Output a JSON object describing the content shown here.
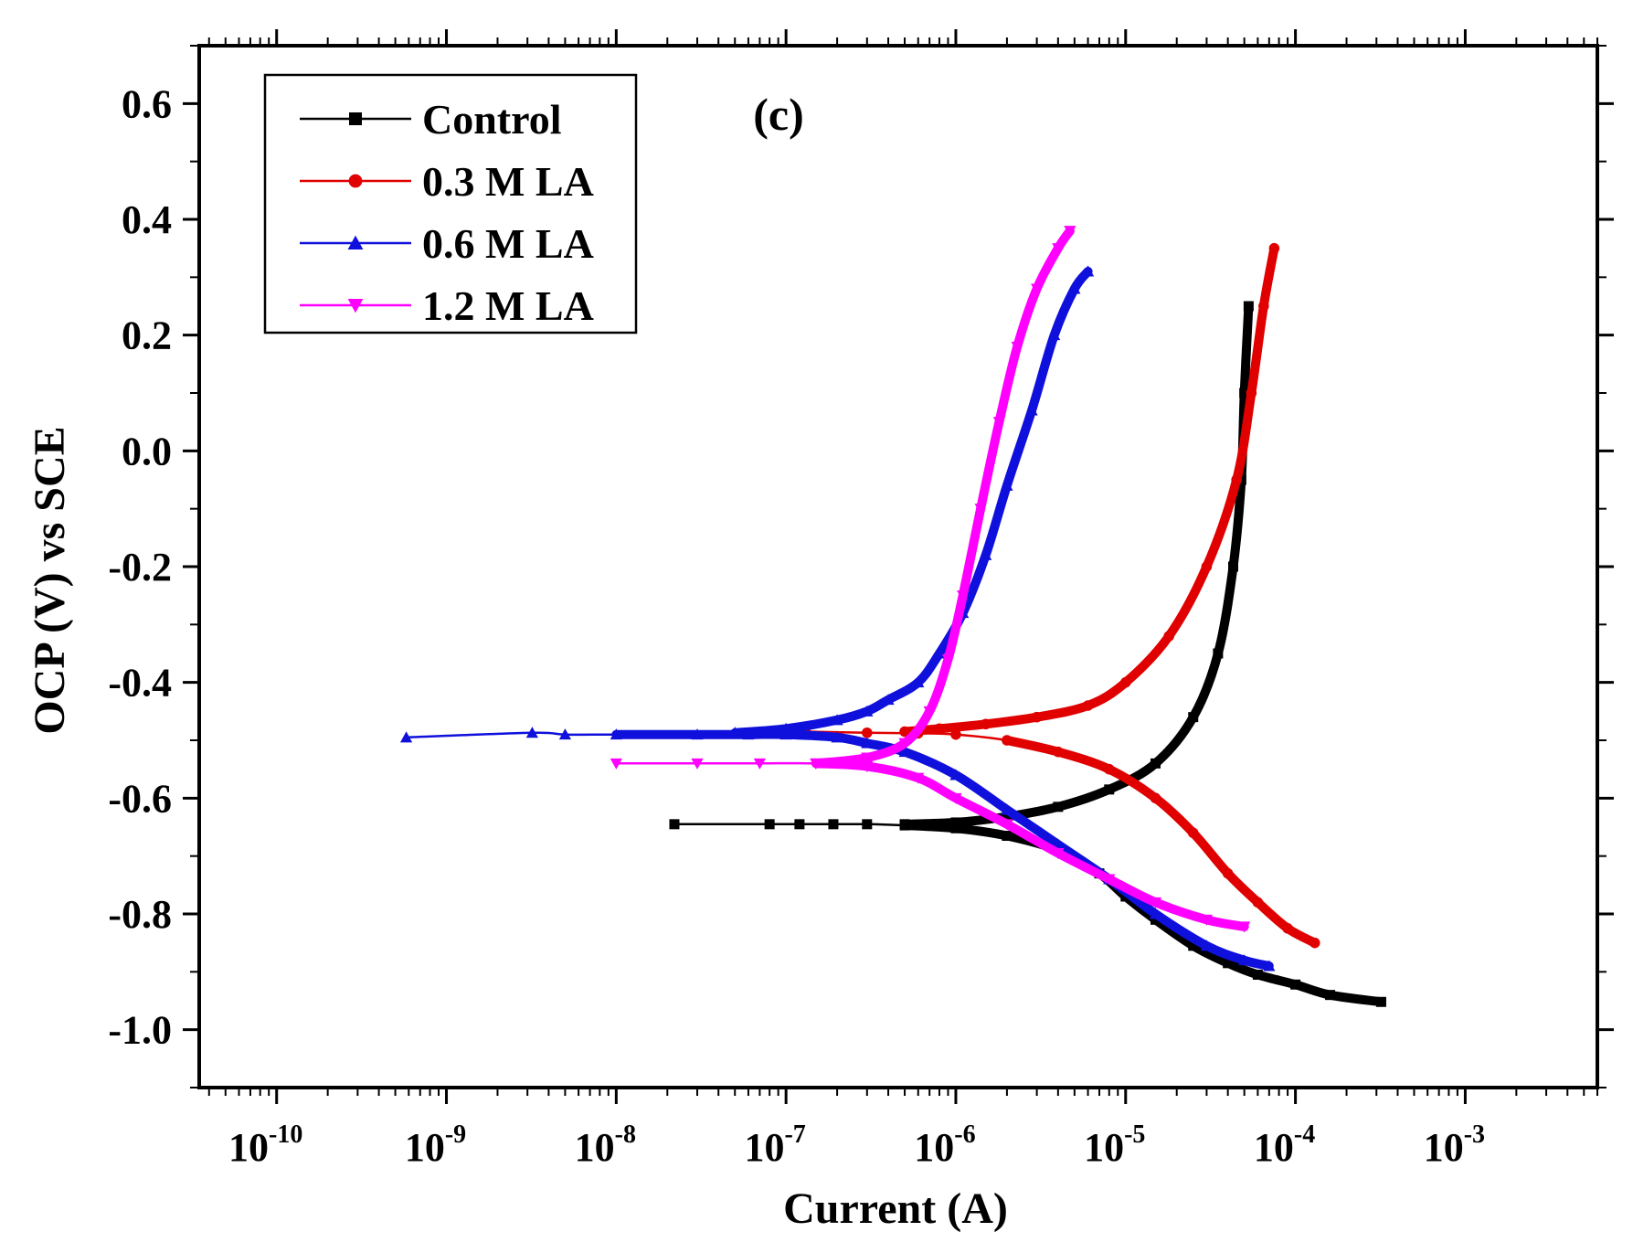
{
  "chart_data": {
    "type": "line",
    "panel_label": "(c)",
    "xlabel": "Current (A)",
    "ylabel": "OCP (V) vs SCE",
    "x_scale": "log",
    "xlim": [
      3.5e-11,
      0.006
    ],
    "ylim": [
      -1.1,
      0.7
    ],
    "x_ticks": [
      {
        "base": "10",
        "exp": "-10"
      },
      {
        "base": "10",
        "exp": "-9"
      },
      {
        "base": "10",
        "exp": "-8"
      },
      {
        "base": "10",
        "exp": "-7"
      },
      {
        "base": "10",
        "exp": "-6"
      },
      {
        "base": "10",
        "exp": "-5"
      },
      {
        "base": "10",
        "exp": "-4"
      },
      {
        "base": "10",
        "exp": "-3"
      }
    ],
    "y_ticks": [
      "0.6",
      "0.4",
      "0.2",
      "0.0",
      "-0.2",
      "-0.4",
      "-0.6",
      "-0.8",
      "-1.0"
    ],
    "legend_position": "top-left",
    "series": [
      {
        "name": "Control",
        "color": "#000000",
        "marker": "square",
        "cathodic": [
          [
            2.2e-08,
            -0.645
          ],
          [
            8e-08,
            -0.645
          ],
          [
            1.2e-07,
            -0.645
          ],
          [
            1.9e-07,
            -0.645
          ],
          [
            3e-07,
            -0.645
          ],
          [
            5e-07,
            -0.647
          ],
          [
            1e-06,
            -0.652
          ],
          [
            2e-06,
            -0.665
          ],
          [
            4e-06,
            -0.69
          ],
          [
            7e-06,
            -0.73
          ],
          [
            1e-05,
            -0.77
          ],
          [
            1.5e-05,
            -0.81
          ],
          [
            2.5e-05,
            -0.855
          ],
          [
            4e-05,
            -0.885
          ],
          [
            6e-05,
            -0.905
          ],
          [
            0.0001,
            -0.922
          ],
          [
            0.00016,
            -0.94
          ],
          [
            0.00032,
            -0.952
          ]
        ],
        "anodic": [
          [
            5e-07,
            -0.645
          ],
          [
            1e-06,
            -0.642
          ],
          [
            2e-06,
            -0.632
          ],
          [
            4e-06,
            -0.615
          ],
          [
            8e-06,
            -0.585
          ],
          [
            1.5e-05,
            -0.54
          ],
          [
            2.5e-05,
            -0.46
          ],
          [
            3.5e-05,
            -0.35
          ],
          [
            4.3e-05,
            -0.2
          ],
          [
            4.8e-05,
            -0.05
          ],
          [
            5e-05,
            0.1
          ],
          [
            5.3e-05,
            0.25
          ]
        ]
      },
      {
        "name": "0.3 M LA",
        "color": "#e00000",
        "marker": "circle",
        "cathodic": [
          [
            1.3e-07,
            -0.485
          ],
          [
            3e-07,
            -0.487
          ],
          [
            6e-07,
            -0.488
          ],
          [
            1e-06,
            -0.49
          ],
          [
            2e-06,
            -0.5
          ],
          [
            4e-06,
            -0.52
          ],
          [
            8e-06,
            -0.55
          ],
          [
            1.5e-05,
            -0.6
          ],
          [
            2.5e-05,
            -0.66
          ],
          [
            4e-05,
            -0.73
          ],
          [
            6e-05,
            -0.78
          ],
          [
            9e-05,
            -0.825
          ],
          [
            0.00013,
            -0.85
          ]
        ],
        "anodic": [
          [
            5e-07,
            -0.485
          ],
          [
            8e-07,
            -0.48
          ],
          [
            1.5e-06,
            -0.472
          ],
          [
            3e-06,
            -0.46
          ],
          [
            6e-06,
            -0.44
          ],
          [
            1e-05,
            -0.4
          ],
          [
            1.8e-05,
            -0.32
          ],
          [
            3e-05,
            -0.2
          ],
          [
            4.5e-05,
            -0.05
          ],
          [
            5.5e-05,
            0.1
          ],
          [
            6.5e-05,
            0.25
          ],
          [
            7.5e-05,
            0.35
          ]
        ]
      },
      {
        "name": "0.6 M LA",
        "color": "#1010dd",
        "marker": "triangle-up",
        "cathodic": [
          [
            5.8e-10,
            -0.495
          ],
          [
            3.2e-09,
            -0.487
          ],
          [
            5e-09,
            -0.49
          ],
          [
            1e-08,
            -0.49
          ],
          [
            3e-08,
            -0.49
          ],
          [
            6e-08,
            -0.49
          ],
          [
            1e-07,
            -0.49
          ],
          [
            2e-07,
            -0.495
          ],
          [
            3e-07,
            -0.505
          ],
          [
            5e-07,
            -0.52
          ],
          [
            1e-06,
            -0.56
          ],
          [
            2e-06,
            -0.62
          ],
          [
            4e-06,
            -0.68
          ],
          [
            8e-06,
            -0.74
          ],
          [
            1.5e-05,
            -0.8
          ],
          [
            3e-05,
            -0.855
          ],
          [
            5e-05,
            -0.88
          ],
          [
            7e-05,
            -0.89
          ]
        ],
        "anodic": [
          [
            5e-08,
            -0.487
          ],
          [
            1e-07,
            -0.48
          ],
          [
            2e-07,
            -0.465
          ],
          [
            3e-07,
            -0.45
          ],
          [
            4e-07,
            -0.43
          ],
          [
            6e-07,
            -0.4
          ],
          [
            8e-07,
            -0.35
          ],
          [
            1.1e-06,
            -0.28
          ],
          [
            1.5e-06,
            -0.18
          ],
          [
            2e-06,
            -0.06
          ],
          [
            2.8e-06,
            0.07
          ],
          [
            3.8e-06,
            0.2
          ],
          [
            5e-06,
            0.28
          ],
          [
            6e-06,
            0.31
          ]
        ]
      },
      {
        "name": "1.2 M LA",
        "color": "#ff00ff",
        "marker": "triangle-down",
        "cathodic": [
          [
            1e-08,
            -0.54
          ],
          [
            3e-08,
            -0.54
          ],
          [
            7e-08,
            -0.54
          ],
          [
            1.5e-07,
            -0.54
          ],
          [
            3e-07,
            -0.545
          ],
          [
            6e-07,
            -0.565
          ],
          [
            1e-06,
            -0.6
          ],
          [
            2e-06,
            -0.645
          ],
          [
            4e-06,
            -0.695
          ],
          [
            8e-06,
            -0.74
          ],
          [
            1.5e-05,
            -0.78
          ],
          [
            3e-05,
            -0.81
          ],
          [
            5e-05,
            -0.822
          ]
        ],
        "anodic": [
          [
            1.5e-07,
            -0.54
          ],
          [
            3e-07,
            -0.53
          ],
          [
            5e-07,
            -0.505
          ],
          [
            7e-07,
            -0.45
          ],
          [
            9e-07,
            -0.36
          ],
          [
            1.1e-06,
            -0.25
          ],
          [
            1.4e-06,
            -0.1
          ],
          [
            1.8e-06,
            0.05
          ],
          [
            2.3e-06,
            0.18
          ],
          [
            3e-06,
            0.28
          ],
          [
            4e-06,
            0.35
          ],
          [
            4.7e-06,
            0.38
          ]
        ]
      }
    ]
  }
}
